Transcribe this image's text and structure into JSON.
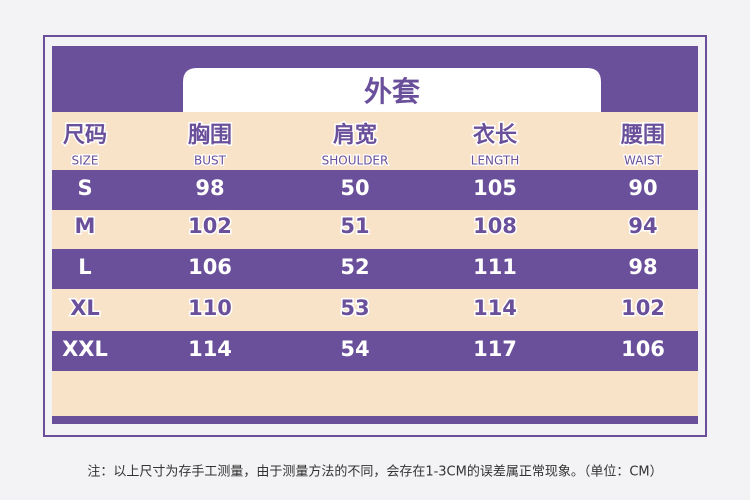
{
  "header": {
    "title": "外套"
  },
  "table": {
    "columns": [
      {
        "zh": "尺码",
        "en": "SIZE"
      },
      {
        "zh": "胸围",
        "en": "BUST"
      },
      {
        "zh": "肩宽",
        "en": "SHOULDER"
      },
      {
        "zh": "衣长",
        "en": "LENGTH"
      },
      {
        "zh": "腰围",
        "en": "WAIST"
      }
    ],
    "rows": [
      [
        "S",
        "98",
        "50",
        "105",
        "90"
      ],
      [
        "M",
        "102",
        "51",
        "108",
        "94"
      ],
      [
        "L",
        "106",
        "52",
        "111",
        "98"
      ],
      [
        "XL",
        "110",
        "53",
        "114",
        "102"
      ],
      [
        "XXL",
        "114",
        "54",
        "117",
        "106"
      ]
    ]
  },
  "note": "注：以上尺寸为存手工测量，由于测量方法的不同，会存在1-3CM的误差属正常现象。（单位：CM）"
}
